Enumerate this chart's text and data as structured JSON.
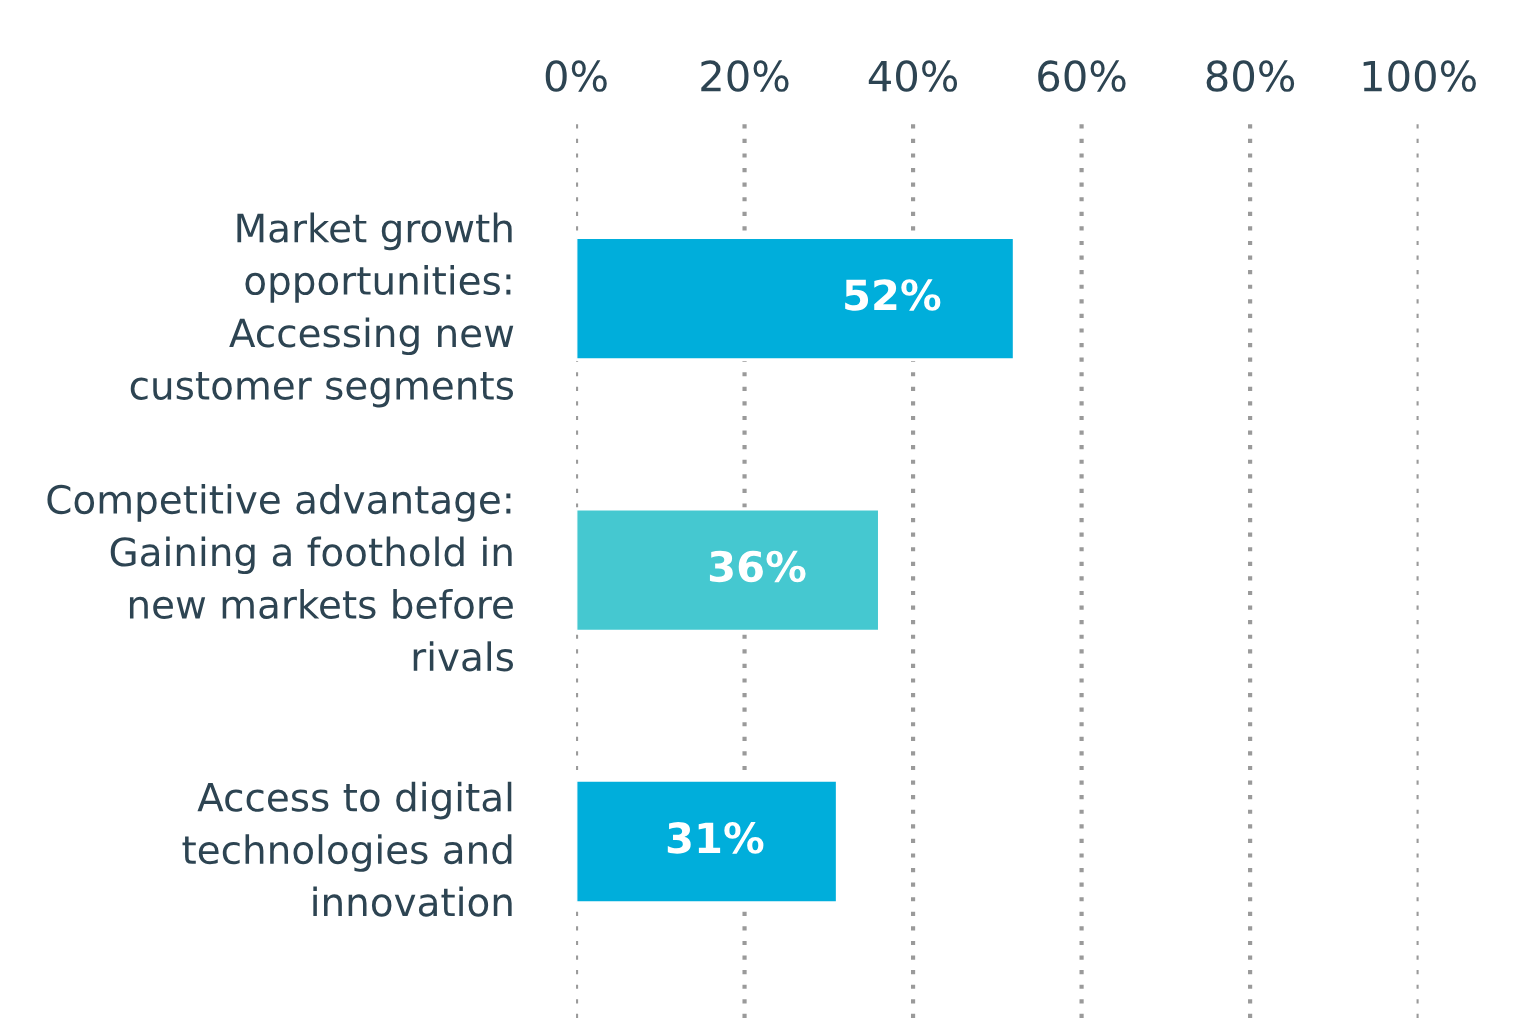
{
  "chart_data": {
    "type": "bar",
    "orientation": "horizontal",
    "categories": [
      "Market growth\nopportunities:\nAccessing new\ncustomer segments",
      "Competitive advantage:\nGaining a foothold in\nnew markets before\nrivals",
      "Access to digital\ntechnologies and\ninnovation"
    ],
    "values": [
      52,
      36,
      31
    ],
    "colors": [
      "#00aedb",
      "#45c8d0",
      "#00aedb"
    ],
    "value_labels": [
      "52%",
      "36%",
      "31%"
    ],
    "xlim": [
      0,
      100
    ],
    "xticks": [
      {
        "value": 0,
        "label": "0%"
      },
      {
        "value": 20,
        "label": "20%"
      },
      {
        "value": 40,
        "label": "40%"
      },
      {
        "value": 60,
        "label": "60%"
      },
      {
        "value": 80,
        "label": "80%"
      },
      {
        "value": 100,
        "label": "100%"
      }
    ],
    "grid": "x"
  }
}
